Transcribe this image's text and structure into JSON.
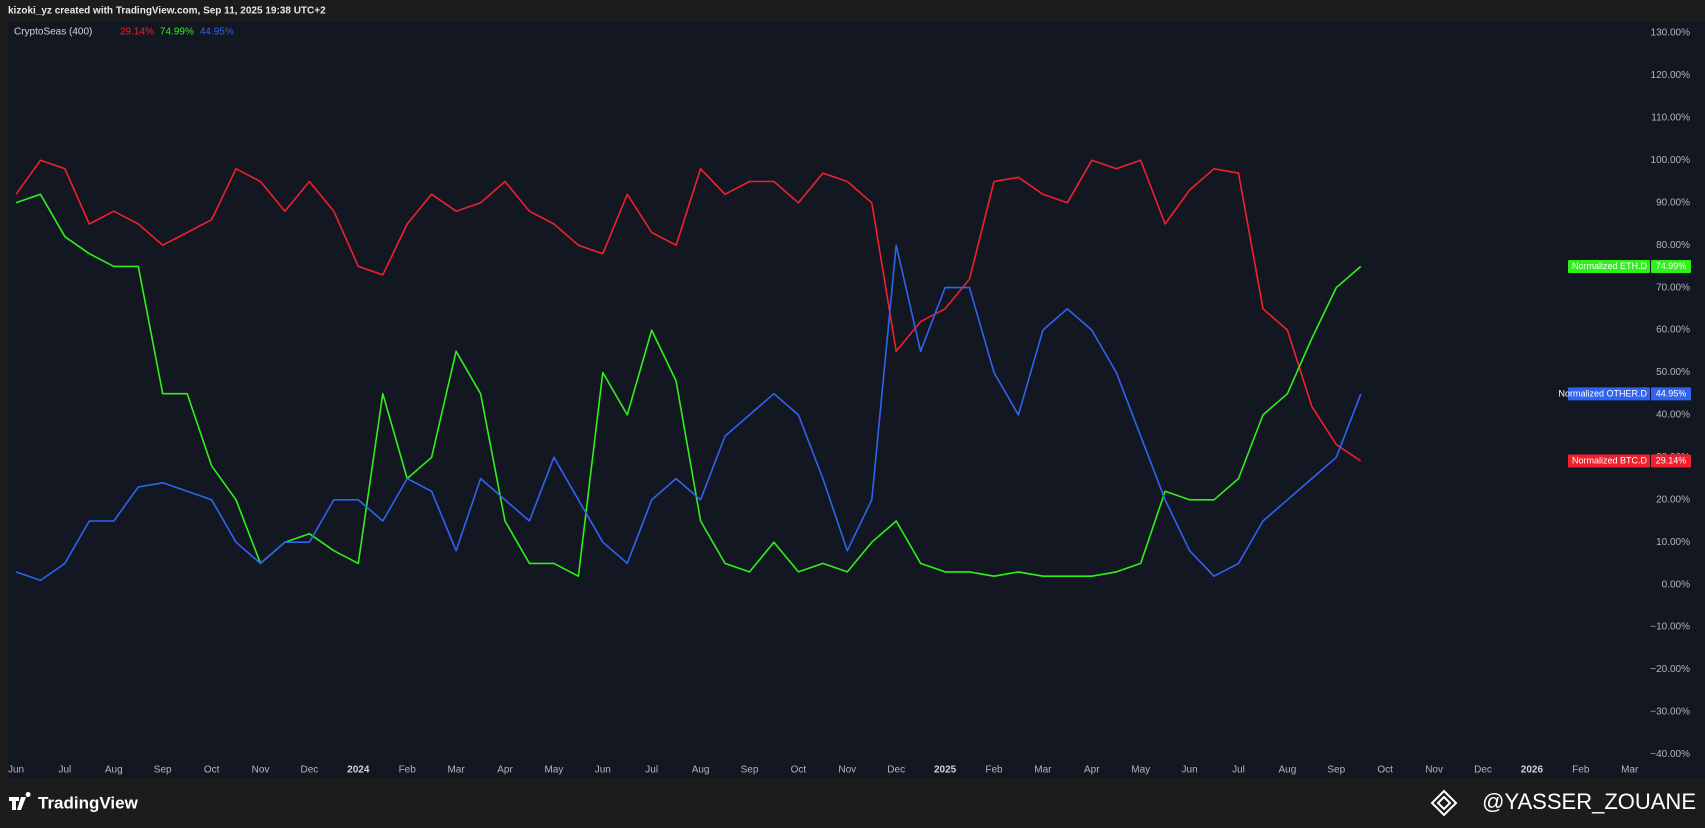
{
  "header": {
    "text": "kizoki_yz created with TradingView.com, Sep 11, 2025 19:38 UTC+2"
  },
  "footer": {
    "brand": "TradingView",
    "watermark": "@YASSER_ZOUANE"
  },
  "chart_data": {
    "type": "line",
    "title": "CryptoSeas (400)",
    "legend": "top-left",
    "grid": false,
    "categories": [
      "Jun",
      null,
      "Jul",
      null,
      "Aug",
      null,
      "Sep",
      null,
      "Oct",
      null,
      "Nov",
      null,
      "Dec",
      null,
      "2024",
      null,
      "Feb",
      null,
      "Mar",
      null,
      "Apr",
      null,
      "May",
      null,
      "Jun",
      null,
      "Jul",
      null,
      "Aug",
      null,
      "Sep",
      null,
      "Oct",
      null,
      "Nov",
      null,
      "Dec",
      null,
      "2025",
      null,
      "Feb",
      null,
      "Mar",
      null,
      "Apr",
      null,
      "May",
      null,
      "Jun",
      null,
      "Jul",
      null,
      "Aug",
      null,
      "Sep",
      null,
      "Oct",
      null,
      "Nov",
      null,
      "Dec",
      null,
      "2026",
      null,
      "Feb",
      null,
      "Mar",
      null
    ],
    "series": [
      {
        "name": "Normalized BTC.D",
        "color": "#f0202c",
        "values": [
          92,
          100,
          98,
          85,
          88,
          85,
          80,
          83,
          86,
          98,
          95,
          88,
          95,
          88,
          75,
          73,
          85,
          92,
          88,
          90,
          95,
          88,
          85,
          80,
          78,
          92,
          83,
          80,
          98,
          92,
          95,
          95,
          90,
          97,
          95,
          90,
          55,
          62,
          65,
          72,
          95,
          96,
          92,
          90,
          100,
          98,
          100,
          85,
          93,
          98,
          97,
          65,
          60,
          42,
          33,
          29.14,
          null,
          null,
          null,
          null,
          null,
          null,
          null,
          null,
          null,
          null,
          null,
          null
        ],
        "value_labels": [
          null,
          null,
          null,
          null,
          null,
          null,
          null,
          null,
          null,
          null,
          null,
          null,
          null,
          null,
          null,
          null,
          null,
          null,
          null,
          null,
          null,
          null,
          null,
          null,
          null,
          null,
          null,
          null,
          null,
          null,
          null,
          null,
          null,
          null,
          null,
          null,
          null,
          null,
          null,
          null,
          null,
          null,
          null,
          null,
          null,
          null,
          null,
          null,
          null,
          null,
          null,
          null,
          null,
          null,
          null,
          "29.14%",
          null,
          null,
          null,
          null,
          null,
          null,
          null,
          null,
          null,
          null,
          null,
          null
        ]
      },
      {
        "name": "Normalized ETH.D",
        "color": "#2ef01a",
        "values": [
          90,
          92,
          82,
          78,
          75,
          75,
          45,
          45,
          28,
          20,
          5,
          10,
          12,
          8,
          5,
          45,
          25,
          30,
          55,
          45,
          15,
          5,
          5,
          2,
          50,
          40,
          60,
          48,
          15,
          5,
          3,
          10,
          3,
          5,
          3,
          10,
          15,
          5,
          3,
          3,
          2,
          3,
          2,
          2,
          2,
          3,
          5,
          22,
          20,
          20,
          25,
          40,
          45,
          58,
          70,
          74.99,
          null,
          null,
          null,
          null,
          null,
          null,
          null,
          null,
          null,
          null,
          null,
          null
        ],
        "value_labels": [
          null,
          null,
          null,
          null,
          null,
          null,
          null,
          null,
          null,
          null,
          null,
          null,
          null,
          null,
          null,
          null,
          null,
          null,
          null,
          null,
          null,
          null,
          null,
          null,
          null,
          null,
          null,
          null,
          null,
          null,
          null,
          null,
          null,
          null,
          null,
          null,
          null,
          null,
          null,
          null,
          null,
          null,
          null,
          null,
          null,
          null,
          null,
          null,
          null,
          null,
          null,
          null,
          null,
          null,
          null,
          "74.99%",
          null,
          null,
          null,
          null,
          null,
          null,
          null,
          null,
          null,
          null,
          null,
          null
        ]
      },
      {
        "name": "Normalized OTHER.D",
        "color": "#2f63f0",
        "values": [
          3,
          1,
          5,
          15,
          15,
          23,
          24,
          22,
          20,
          10,
          5,
          10,
          10,
          20,
          20,
          15,
          25,
          22,
          8,
          25,
          20,
          15,
          30,
          20,
          10,
          5,
          20,
          25,
          20,
          35,
          40,
          45,
          40,
          25,
          8,
          20,
          80,
          55,
          70,
          70,
          50,
          40,
          60,
          65,
          60,
          50,
          35,
          20,
          8,
          2,
          5,
          15,
          20,
          25,
          30,
          44.95,
          null,
          null,
          null,
          null,
          null,
          null,
          null,
          null,
          null,
          null,
          null,
          null
        ],
        "value_labels": [
          null,
          null,
          null,
          null,
          null,
          null,
          null,
          null,
          null,
          null,
          null,
          null,
          null,
          null,
          null,
          null,
          null,
          null,
          null,
          null,
          null,
          null,
          null,
          null,
          null,
          null,
          null,
          null,
          null,
          null,
          null,
          null,
          null,
          null,
          null,
          null,
          null,
          null,
          null,
          null,
          null,
          null,
          null,
          null,
          null,
          null,
          null,
          null,
          null,
          null,
          null,
          null,
          null,
          null,
          null,
          "44.95%",
          null,
          null,
          null,
          null,
          null,
          null,
          null,
          null,
          null,
          null,
          null,
          null
        ]
      }
    ],
    "ylim": [
      -41.8,
      132.6
    ],
    "yticks": [
      {
        "value": 130,
        "label": "130.00%"
      },
      {
        "value": 120,
        "label": "120.00%"
      },
      {
        "value": 110,
        "label": "110.00%"
      },
      {
        "value": 100,
        "label": "100.00%"
      },
      {
        "value": 90,
        "label": "90.00%"
      },
      {
        "value": 80,
        "label": "80.00%"
      },
      {
        "value": 70,
        "label": "70.00%"
      },
      {
        "value": 60,
        "label": "60.00%"
      },
      {
        "value": 50,
        "label": "50.00%"
      },
      {
        "value": 40,
        "label": "40.00%"
      },
      {
        "value": 30,
        "label": "30.00%"
      },
      {
        "value": 20,
        "label": "20.00%"
      },
      {
        "value": 10,
        "label": "10.00%"
      },
      {
        "value": 0,
        "label": "0.00%"
      },
      {
        "value": -10,
        "label": "−10.00%"
      },
      {
        "value": -20,
        "label": "−20.00%"
      },
      {
        "value": -30,
        "label": "−30.00%"
      },
      {
        "value": -40,
        "label": "−40.00%"
      }
    ]
  }
}
